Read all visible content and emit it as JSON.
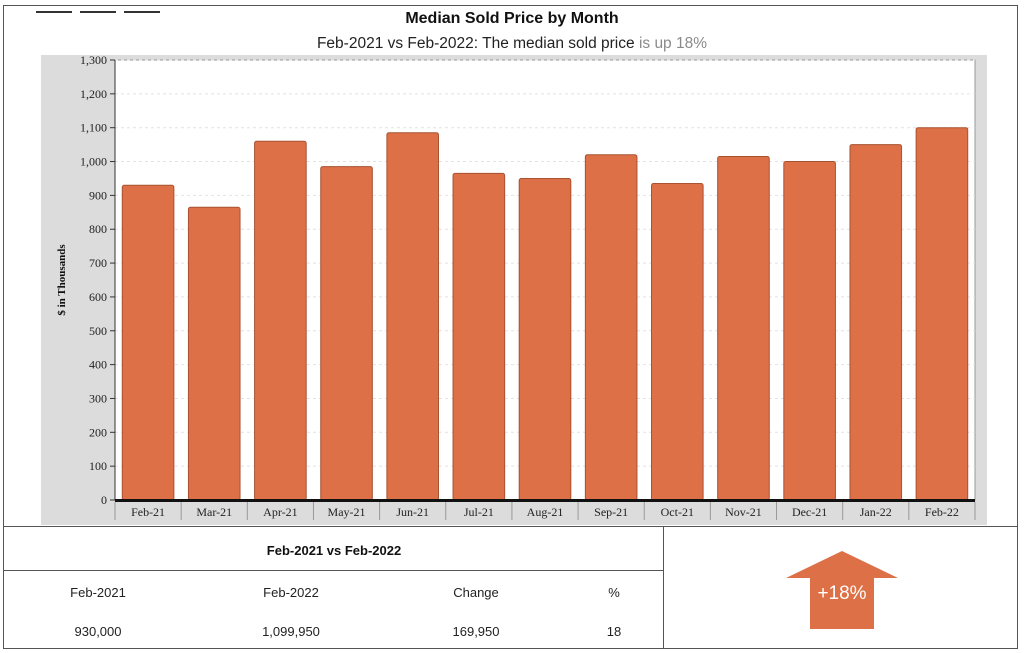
{
  "chart_data": {
    "type": "bar",
    "title": "Median Sold Price by Month",
    "subtitle_main": "Feb-2021 vs Feb-2022: The median sold price",
    "subtitle_trend": "is up 18%",
    "ylabel": "$ in Thousands",
    "xlabel": "",
    "ylim": [
      0,
      1300
    ],
    "yticks": [
      0,
      100,
      200,
      300,
      400,
      500,
      600,
      700,
      800,
      900,
      1000,
      1100,
      1200,
      1300
    ],
    "ytick_labels": [
      "0",
      "100",
      "200",
      "300",
      "400",
      "500",
      "600",
      "700",
      "800",
      "900",
      "1,000",
      "1,100",
      "1,200",
      "1,300"
    ],
    "grid": true,
    "bar_color": "#dd7047",
    "plot_background": "#ffffff",
    "frame_background": "#dcdcdc",
    "categories": [
      "Feb-21",
      "Mar-21",
      "Apr-21",
      "May-21",
      "Jun-21",
      "Jul-21",
      "Aug-21",
      "Sep-21",
      "Oct-21",
      "Nov-21",
      "Dec-21",
      "Jan-22",
      "Feb-22"
    ],
    "values": [
      930,
      865,
      1060,
      985,
      1085,
      965,
      950,
      1020,
      935,
      1015,
      1000,
      1050,
      1100
    ]
  },
  "comparison": {
    "title": "Feb-2021 vs Feb-2022",
    "headers": [
      "Feb-2021",
      "Feb-2022",
      "Change",
      "%"
    ],
    "values": [
      "930,000",
      "1,099,950",
      "169,950",
      "18"
    ]
  },
  "indicator": {
    "label": "+18%",
    "direction": "up",
    "icon": "up-arrow-icon",
    "color": "#dd7047"
  }
}
